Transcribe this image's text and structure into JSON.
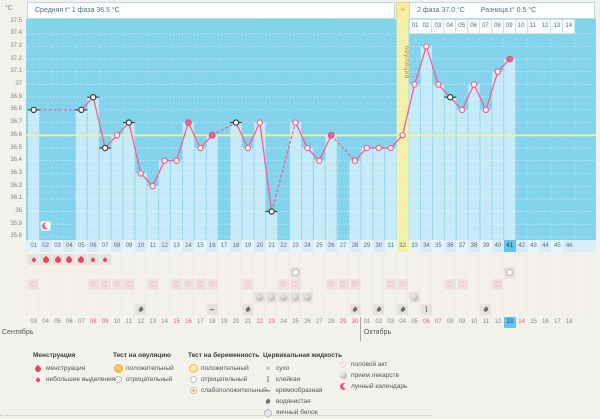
{
  "header": {
    "unit": "°C",
    "phase1_label": "Средняя t° 1 фаза 36.5 °C",
    "phase2_label": "2 фаза 37.0 °C",
    "diff_label": "Разница t° 0.5 °C",
    "sun_icon": "☀",
    "ovulation_label": "овуляция"
  },
  "months": {
    "september": "Сентябрь",
    "october": "Октябрь"
  },
  "colors": {
    "line": "#f2618f",
    "chart_bg": "#84d3ed",
    "bar": "#c6eaf8",
    "band": "#f4efa9",
    "coverline": "#eff29a",
    "today": "#66c4ec",
    "weekend": "#f05a72",
    "drop": "#f0445e",
    "heart": "#f2709e",
    "moon": "#f2508a",
    "excluded": "#3a3a3a"
  },
  "chart_data": {
    "type": "line",
    "title": "",
    "xlabel": "",
    "ylabel": "°C",
    "ylim": [
      35.8,
      37.5
    ],
    "ytick_step": 0.1,
    "days_total": 46,
    "coverline_temp": 36.6,
    "ovulation_day": 32,
    "today_day": 41,
    "avg_phase1_temp": 36.5,
    "avg_phase2_temp": 37.0,
    "temp_difference": 0.5,
    "moon_calendar_day": 2,
    "y_axis_labels": [
      "37.5",
      "37.4",
      "37.3",
      "37.2",
      "37.1",
      "37",
      "36.9",
      "36.8",
      "36.7",
      "36.6",
      "36.5",
      "36.4",
      "36.3",
      "36.2",
      "36.1",
      "36",
      "35.9",
      "35.8"
    ],
    "phase2_day_labels": [
      "01",
      "02",
      "03",
      "04",
      "05",
      "06",
      "07",
      "08",
      "09",
      "10",
      "11",
      "12",
      "13",
      "14"
    ],
    "points": [
      {
        "day": 1,
        "temp": 36.8,
        "marker": "excluded"
      },
      {
        "day": 5,
        "temp": 36.8,
        "marker": "excluded"
      },
      {
        "day": 6,
        "temp": 36.9,
        "marker": "excluded"
      },
      {
        "day": 7,
        "temp": 36.5,
        "marker": "excluded"
      },
      {
        "day": 8,
        "temp": 36.6,
        "marker": "normal"
      },
      {
        "day": 9,
        "temp": 36.7,
        "marker": "excluded"
      },
      {
        "day": 10,
        "temp": 36.3,
        "marker": "normal"
      },
      {
        "day": 11,
        "temp": 36.2,
        "marker": "normal"
      },
      {
        "day": 12,
        "temp": 36.4,
        "marker": "normal"
      },
      {
        "day": 13,
        "temp": 36.4,
        "marker": "normal"
      },
      {
        "day": 14,
        "temp": 36.7,
        "marker": "filled"
      },
      {
        "day": 15,
        "temp": 36.5,
        "marker": "normal"
      },
      {
        "day": 16,
        "temp": 36.6,
        "marker": "filled"
      },
      {
        "day": 18,
        "temp": 36.7,
        "marker": "excluded"
      },
      {
        "day": 19,
        "temp": 36.5,
        "marker": "normal"
      },
      {
        "day": 20,
        "temp": 36.7,
        "marker": "normal"
      },
      {
        "day": 21,
        "temp": 36.0,
        "marker": "excluded"
      },
      {
        "day": 23,
        "temp": 36.7,
        "marker": "normal"
      },
      {
        "day": 24,
        "temp": 36.5,
        "marker": "normal"
      },
      {
        "day": 25,
        "temp": 36.4,
        "marker": "normal"
      },
      {
        "day": 26,
        "temp": 36.6,
        "marker": "filled"
      },
      {
        "day": 28,
        "temp": 36.4,
        "marker": "normal"
      },
      {
        "day": 29,
        "temp": 36.5,
        "marker": "normal"
      },
      {
        "day": 30,
        "temp": 36.5,
        "marker": "normal"
      },
      {
        "day": 31,
        "temp": 36.5,
        "marker": "normal"
      },
      {
        "day": 32,
        "temp": 36.6,
        "marker": "normal"
      },
      {
        "day": 33,
        "temp": 37.0,
        "marker": "normal"
      },
      {
        "day": 34,
        "temp": 37.3,
        "marker": "normal"
      },
      {
        "day": 35,
        "temp": 37.0,
        "marker": "normal"
      },
      {
        "day": 36,
        "temp": 36.9,
        "marker": "excluded"
      },
      {
        "day": 37,
        "temp": 36.8,
        "marker": "normal"
      },
      {
        "day": 38,
        "temp": 37.0,
        "marker": "normal"
      },
      {
        "day": 39,
        "temp": 36.8,
        "marker": "normal"
      },
      {
        "day": 40,
        "temp": 37.1,
        "marker": "normal"
      },
      {
        "day": 41,
        "temp": 37.2,
        "marker": "filled"
      }
    ]
  },
  "axis": {
    "day_numbers": [
      "01",
      "02",
      "03",
      "04",
      "05",
      "06",
      "07",
      "08",
      "09",
      "10",
      "11",
      "12",
      "13",
      "14",
      "15",
      "16",
      "17",
      "18",
      "19",
      "20",
      "21",
      "22",
      "23",
      "24",
      "25",
      "26",
      "27",
      "28",
      "29",
      "30",
      "31",
      "32",
      "33",
      "34",
      "35",
      "36",
      "37",
      "38",
      "39",
      "40",
      "41",
      "42",
      "43",
      "44",
      "45",
      "46"
    ]
  },
  "dates": [
    {
      "label": "03"
    },
    {
      "label": "04"
    },
    {
      "label": "05"
    },
    {
      "label": "06"
    },
    {
      "label": "07"
    },
    {
      "label": "08",
      "weekend": true
    },
    {
      "label": "09",
      "weekend": true
    },
    {
      "label": "10"
    },
    {
      "label": "11"
    },
    {
      "label": "12"
    },
    {
      "label": "13"
    },
    {
      "label": "14"
    },
    {
      "label": "15",
      "weekend": true
    },
    {
      "label": "16",
      "weekend": true
    },
    {
      "label": "17"
    },
    {
      "label": "18"
    },
    {
      "label": "19"
    },
    {
      "label": "20"
    },
    {
      "label": "21"
    },
    {
      "label": "22",
      "weekend": true
    },
    {
      "label": "23",
      "weekend": true
    },
    {
      "label": "24"
    },
    {
      "label": "25"
    },
    {
      "label": "26"
    },
    {
      "label": "27"
    },
    {
      "label": "28"
    },
    {
      "label": "29",
      "weekend": true
    },
    {
      "label": "30",
      "weekend": true
    },
    {
      "label": "01"
    },
    {
      "label": "02"
    },
    {
      "label": "03"
    },
    {
      "label": "04"
    },
    {
      "label": "05"
    },
    {
      "label": "06",
      "weekend": true
    },
    {
      "label": "07",
      "weekend": true
    },
    {
      "label": "08"
    },
    {
      "label": "09"
    },
    {
      "label": "10"
    },
    {
      "label": "11"
    },
    {
      "label": "12"
    },
    {
      "label": "13",
      "today": true
    },
    {
      "label": "14",
      "weekend": true
    },
    {
      "label": "15"
    },
    {
      "label": "16"
    },
    {
      "label": "17"
    },
    {
      "label": "18"
    }
  ],
  "symbol_rows": {
    "menstruation": [
      {
        "day": 1,
        "size": "small"
      },
      {
        "day": 2,
        "size": "big"
      },
      {
        "day": 3,
        "size": "big"
      },
      {
        "day": 4,
        "size": "big"
      },
      {
        "day": 5,
        "size": "big"
      },
      {
        "day": 6,
        "size": "small"
      },
      {
        "day": 7,
        "size": "small"
      }
    ],
    "tests_negative_days": [
      23,
      41
    ],
    "intercourse_days": [
      1,
      6,
      7,
      8,
      9,
      11,
      13,
      14,
      15,
      16,
      19,
      22,
      23,
      26,
      27,
      28,
      31,
      32,
      36,
      37,
      40
    ],
    "medication_days": [
      20,
      21,
      22,
      23,
      24,
      33
    ],
    "cervical": [
      {
        "day": 10,
        "type": "watery"
      },
      {
        "day": 16,
        "type": "creamy"
      },
      {
        "day": 19,
        "type": "watery"
      },
      {
        "day": 28,
        "type": "watery"
      },
      {
        "day": 30,
        "type": "watery"
      },
      {
        "day": 32,
        "type": "watery"
      },
      {
        "day": 34,
        "type": "sticky"
      },
      {
        "day": 39,
        "type": "watery"
      }
    ]
  },
  "legend": {
    "groups": [
      {
        "title": "Менструация",
        "items": [
          {
            "icon": "drop-big",
            "label": "менструация"
          },
          {
            "icon": "drop-small",
            "label": "небольшие выделения"
          }
        ]
      },
      {
        "title": "Тест на овуляцию",
        "items": [
          {
            "icon": "test-positive",
            "label": "положительный"
          },
          {
            "icon": "test-negative",
            "label": "отрицательный"
          }
        ]
      },
      {
        "title": "Тест на беременность",
        "items": [
          {
            "icon": "preg-positive",
            "label": "положительный"
          },
          {
            "icon": "preg-negative",
            "label": "отрицательный"
          },
          {
            "icon": "preg-weak",
            "label": "слабоположительный"
          }
        ]
      },
      {
        "title": "Цервикальная жидкость",
        "items": [
          {
            "icon": "dry",
            "label": "сухо"
          },
          {
            "icon": "sticky",
            "label": "клейкая"
          },
          {
            "icon": "creamy",
            "label": "кремообразная"
          },
          {
            "icon": "watery",
            "label": "водянистая"
          },
          {
            "icon": "eggwhite",
            "label": "яичный белок"
          }
        ]
      },
      {
        "title": "",
        "items": [
          {
            "icon": "heart",
            "label": "половой акт"
          },
          {
            "icon": "pill",
            "label": "прием лекарств"
          },
          {
            "icon": "moon",
            "label": "лунный календарь"
          }
        ]
      }
    ]
  }
}
